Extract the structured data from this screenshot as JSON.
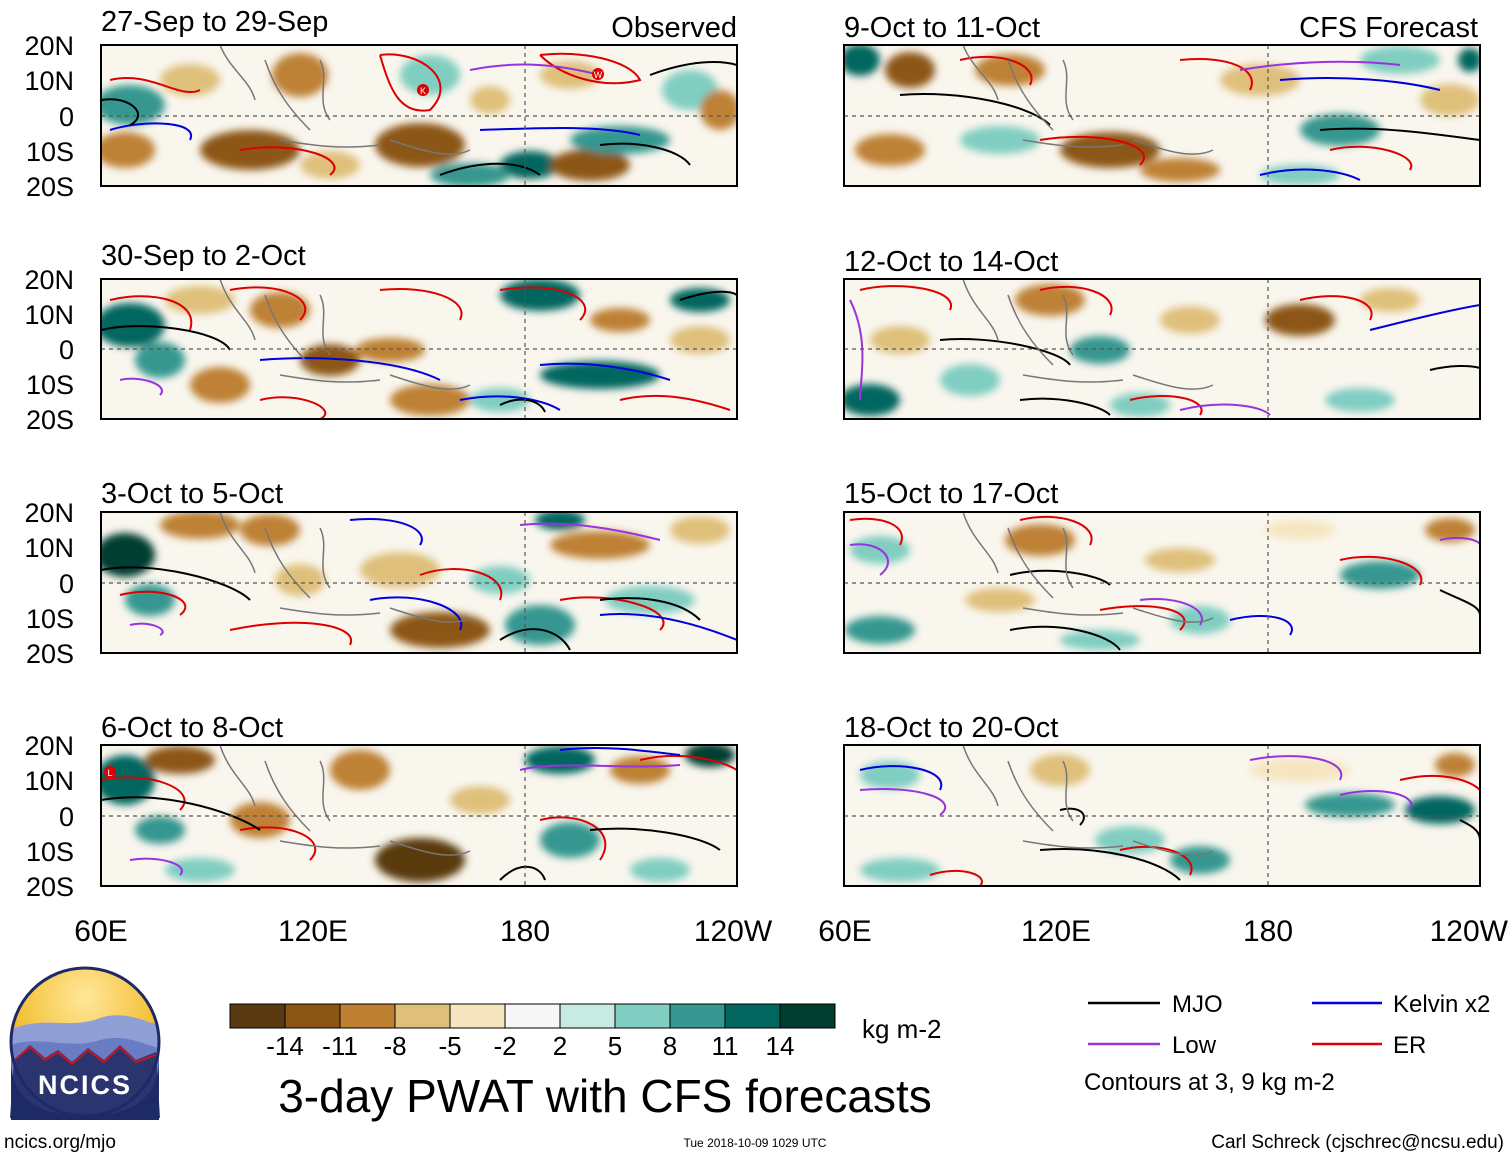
{
  "panels": [
    {
      "period": "27-Sep to 29-Sep",
      "tag": "Observed"
    },
    {
      "period": "30-Sep to 2-Oct",
      "tag": ""
    },
    {
      "period": "3-Oct to 5-Oct",
      "tag": ""
    },
    {
      "period": "6-Oct to 8-Oct",
      "tag": ""
    },
    {
      "period": "9-Oct to 11-Oct",
      "tag": "CFS Forecast"
    },
    {
      "period": "12-Oct to 14-Oct",
      "tag": ""
    },
    {
      "period": "15-Oct to 17-Oct",
      "tag": ""
    },
    {
      "period": "18-Oct to 20-Oct",
      "tag": ""
    }
  ],
  "lat_labels": [
    "20N",
    "10N",
    "0",
    "10S",
    "20S"
  ],
  "lon_labels": [
    "60E",
    "120E",
    "180",
    "120W"
  ],
  "colorbar": {
    "colors": [
      "#5a3a10",
      "#8c5714",
      "#be8134",
      "#dfc07a",
      "#f5e6c0",
      "#f7f7f7",
      "#c7eae2",
      "#80cdc1",
      "#35978f",
      "#01665e",
      "#003c30"
    ],
    "ticks": [
      "-14",
      "-11",
      "-8",
      "-5",
      "-2",
      "2",
      "5",
      "8",
      "11",
      "14"
    ],
    "unit": "kg m-2"
  },
  "legend": {
    "items": [
      {
        "label": "MJO",
        "color": "#000000"
      },
      {
        "label": "Kelvin x2",
        "color": "#0000dd"
      },
      {
        "label": "Low",
        "color": "#9933dd"
      },
      {
        "label": "ER",
        "color": "#dd0000"
      }
    ],
    "note": "Contours at 3, 9 kg m-2"
  },
  "logo_text": "NCICS",
  "title": "3-day PWAT with CFS forecasts",
  "footer": {
    "left": "ncics.org/mjo",
    "center": "Tue 2018-10-09 1029 UTC",
    "right": "Carl Schreck (cjschrec@ncsu.edu)"
  },
  "storm_markers": [
    "K",
    "W",
    "L"
  ]
}
